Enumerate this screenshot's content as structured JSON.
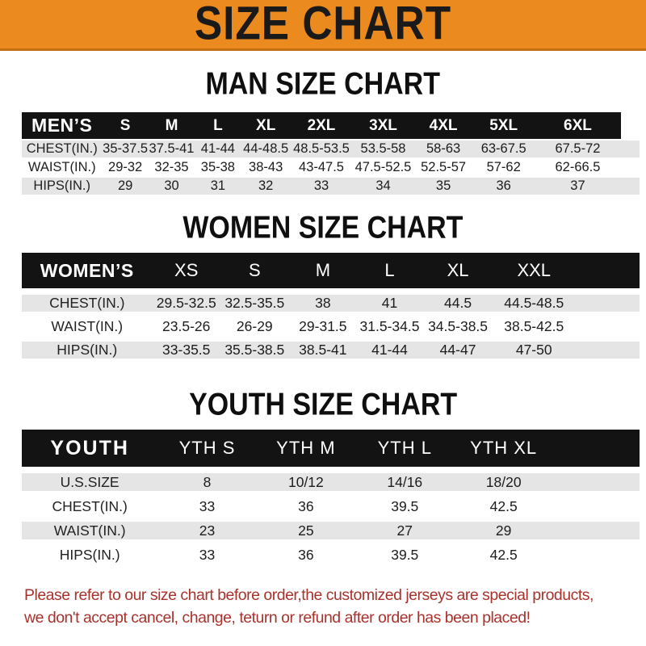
{
  "banner": {
    "title": "SIZE CHART"
  },
  "colors": {
    "banner_bg": "#EB8A1F",
    "banner_text": "#1A1A1A",
    "header_bar_bg": "#131313",
    "header_bar_text": "#FFFFFF",
    "row_shade": "#E5E5E5",
    "footer_text": "#A8322C"
  },
  "sections": [
    {
      "id": "men",
      "title": "MAN SIZE CHART",
      "header_label": "MEN’S",
      "columns": [
        "S",
        "M",
        "L",
        "XL",
        "2XL",
        "3XL",
        "4XL",
        "5XL",
        "6XL"
      ],
      "rows": [
        {
          "label": "CHEST(IN.)",
          "values": [
            "35-37.5",
            "37.5-41",
            "41-44",
            "44-48.5",
            "48.5-53.5",
            "53.5-58",
            "58-63",
            "63-67.5",
            "67.5-72"
          ]
        },
        {
          "label": "WAIST(IN.)",
          "values": [
            "29-32",
            "32-35",
            "35-38",
            "38-43",
            "43-47.5",
            "47.5-52.5",
            "52.5-57",
            "57-62",
            "62-66.5"
          ]
        },
        {
          "label": "HIPS(IN.)",
          "values": [
            "29",
            "30",
            "31",
            "32",
            "33",
            "34",
            "35",
            "36",
            "37"
          ]
        }
      ]
    },
    {
      "id": "women",
      "title": "WOMEN SIZE CHART",
      "header_label": "WOMEN’S",
      "columns": [
        "XS",
        "S",
        "M",
        "L",
        "XL",
        "XXL"
      ],
      "rows": [
        {
          "label": "CHEST(IN.)",
          "values": [
            "29.5-32.5",
            "32.5-35.5",
            "38",
            "41",
            "44.5",
            "44.5-48.5"
          ]
        },
        {
          "label": "WAIST(IN.)",
          "values": [
            "23.5-26",
            "26-29",
            "29-31.5",
            "31.5-34.5",
            "34.5-38.5",
            "38.5-42.5"
          ]
        },
        {
          "label": "HIPS(IN.)",
          "values": [
            "33-35.5",
            "35.5-38.5",
            "38.5-41",
            "41-44",
            "44-47",
            "47-50"
          ]
        }
      ]
    },
    {
      "id": "youth",
      "title": "YOUTH SIZE CHART",
      "header_label": "YOUTH",
      "columns": [
        "YTH S",
        "YTH M",
        "YTH L",
        "YTH XL"
      ],
      "rows": [
        {
          "label": "U.S.SIZE",
          "values": [
            "8",
            "10/12",
            "14/16",
            "18/20"
          ]
        },
        {
          "label": "CHEST(IN.)",
          "values": [
            "33",
            "36",
            "39.5",
            "42.5"
          ]
        },
        {
          "label": "WAIST(IN.)",
          "values": [
            "23",
            "25",
            "27",
            "29"
          ]
        },
        {
          "label": "HIPS(IN.)",
          "values": [
            "33",
            "36",
            "39.5",
            "42.5"
          ]
        }
      ]
    }
  ],
  "footer": {
    "lines": [
      "Please refer to our size chart before order,the customized jerseys are special products,",
      "we don't accept cancel, change, teturn or refund after order has been placed!"
    ]
  }
}
